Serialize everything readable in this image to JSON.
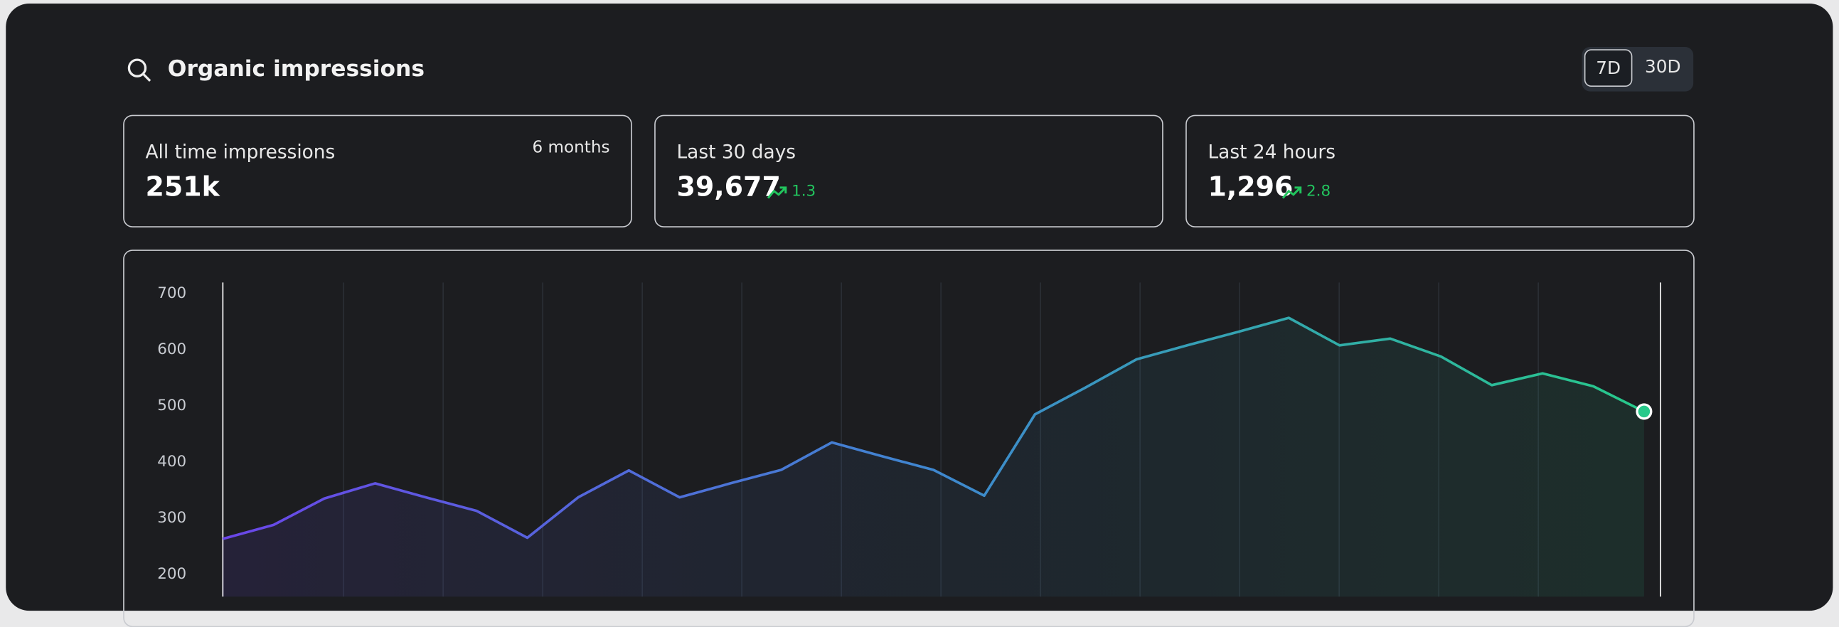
{
  "header": {
    "title": "Organic impressions",
    "toggle": [
      "7D",
      "30D"
    ]
  },
  "stats": [
    {
      "label": "All time impressions",
      "value": "251k",
      "note": "6 months"
    },
    {
      "label": "Last 30 days",
      "value": "39,677",
      "change": "1.3"
    },
    {
      "label": "Last 24 hours",
      "value": "1,296",
      "change": "2.8"
    }
  ],
  "chart_data": {
    "type": "line",
    "values": [
      263,
      288,
      335,
      362,
      337,
      313,
      265,
      337,
      385,
      337,
      362,
      386,
      435,
      410,
      386,
      340,
      485,
      533,
      583,
      608,
      632,
      657,
      608,
      620,
      588,
      537,
      558,
      535,
      490
    ],
    "ylim": [
      160,
      720
    ],
    "yticks": [
      200,
      300,
      400,
      500,
      600,
      700
    ],
    "colors": [
      "#6a46e8",
      "#3f87cf",
      "#27c98a"
    ]
  }
}
